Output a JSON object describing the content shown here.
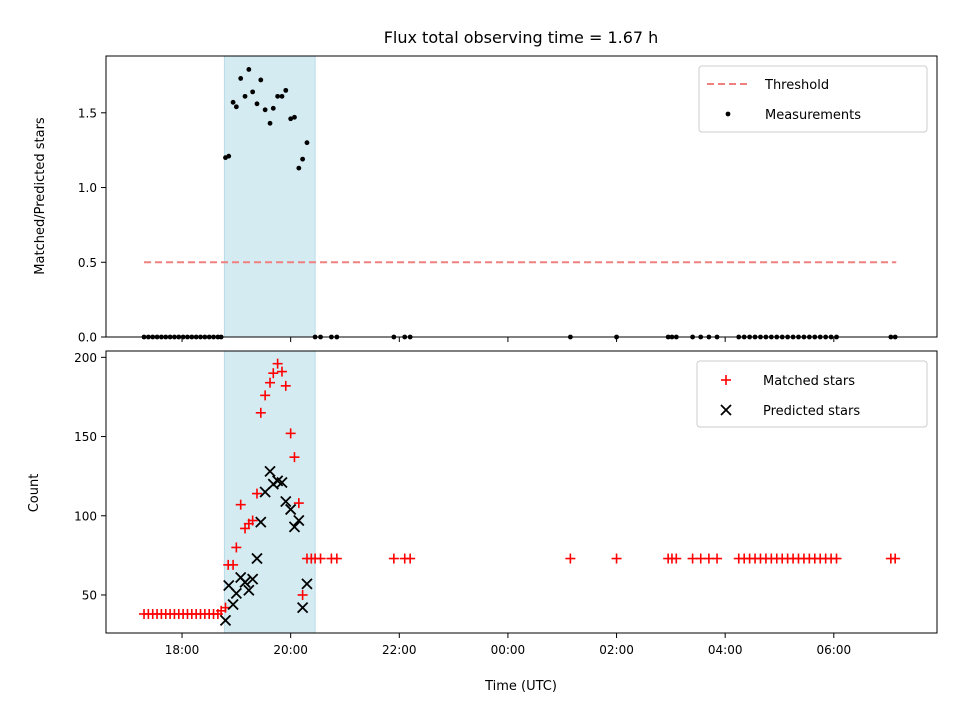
{
  "chart_data": [
    {
      "type": "scatter",
      "title": "Flux total observing time = 1.67 h",
      "xlabel": "",
      "ylabel": "Matched/Predicted stars",
      "ylim": [
        0,
        1.88
      ],
      "xlim_hours": [
        16.6,
        31.9
      ],
      "yticks": [
        "0.0",
        "0.5",
        "1.0",
        "1.5"
      ],
      "ytick_values": [
        0,
        0.5,
        1.0,
        1.5
      ],
      "legend_position": "top-right",
      "highlight_span_hours": [
        18.78,
        20.45
      ],
      "highlight_color": "#d4ebf2",
      "threshold": {
        "name": "Threshold",
        "value": 0.5,
        "x_from": 17.3,
        "x_to": 31.15,
        "color": "#f08080"
      },
      "measurements": {
        "name": "Measurements",
        "color": "#000000",
        "points": [
          [
            17.3,
            0
          ],
          [
            17.38,
            0
          ],
          [
            17.46,
            0
          ],
          [
            17.54,
            0
          ],
          [
            17.62,
            0
          ],
          [
            17.7,
            0
          ],
          [
            17.78,
            0
          ],
          [
            17.86,
            0
          ],
          [
            17.94,
            0
          ],
          [
            18.02,
            0
          ],
          [
            18.1,
            0
          ],
          [
            18.18,
            0
          ],
          [
            18.26,
            0
          ],
          [
            18.34,
            0
          ],
          [
            18.42,
            0
          ],
          [
            18.5,
            0
          ],
          [
            18.58,
            0
          ],
          [
            18.66,
            0
          ],
          [
            18.72,
            0
          ],
          [
            18.8,
            1.2
          ],
          [
            18.86,
            1.21
          ],
          [
            18.94,
            1.57
          ],
          [
            19.0,
            1.54
          ],
          [
            19.08,
            1.73
          ],
          [
            19.16,
            1.61
          ],
          [
            19.23,
            1.79
          ],
          [
            19.3,
            1.64
          ],
          [
            19.38,
            1.56
          ],
          [
            19.45,
            1.72
          ],
          [
            19.53,
            1.52
          ],
          [
            19.62,
            1.43
          ],
          [
            19.68,
            1.53
          ],
          [
            19.76,
            1.61
          ],
          [
            19.84,
            1.61
          ],
          [
            19.91,
            1.65
          ],
          [
            20.0,
            1.46
          ],
          [
            20.07,
            1.47
          ],
          [
            20.15,
            1.13
          ],
          [
            20.22,
            1.19
          ],
          [
            20.3,
            1.3
          ],
          [
            20.45,
            0
          ],
          [
            20.55,
            0
          ],
          [
            20.75,
            0
          ],
          [
            20.85,
            0
          ],
          [
            21.9,
            0
          ],
          [
            22.1,
            0
          ],
          [
            22.2,
            0
          ],
          [
            25.15,
            0
          ],
          [
            26.0,
            0
          ],
          [
            26.95,
            0
          ],
          [
            27.02,
            0
          ],
          [
            27.1,
            0
          ],
          [
            27.4,
            0
          ],
          [
            27.55,
            0
          ],
          [
            27.7,
            0
          ],
          [
            27.85,
            0
          ],
          [
            28.25,
            0
          ],
          [
            28.35,
            0
          ],
          [
            28.45,
            0
          ],
          [
            28.55,
            0
          ],
          [
            28.65,
            0
          ],
          [
            28.75,
            0
          ],
          [
            28.85,
            0
          ],
          [
            28.95,
            0
          ],
          [
            29.05,
            0
          ],
          [
            29.15,
            0
          ],
          [
            29.25,
            0
          ],
          [
            29.35,
            0
          ],
          [
            29.45,
            0
          ],
          [
            29.55,
            0
          ],
          [
            29.65,
            0
          ],
          [
            29.75,
            0
          ],
          [
            29.85,
            0
          ],
          [
            29.95,
            0
          ],
          [
            30.05,
            0
          ],
          [
            31.05,
            0
          ],
          [
            31.13,
            0
          ]
        ]
      }
    },
    {
      "type": "scatter",
      "xlabel": "Time (UTC)",
      "ylabel": "Count",
      "ylim": [
        26,
        204
      ],
      "xlim_hours": [
        16.6,
        31.9
      ],
      "yticks": [
        "50",
        "100",
        "150",
        "200"
      ],
      "ytick_values": [
        50,
        100,
        150,
        200
      ],
      "xticks": [
        "18:00",
        "20:00",
        "22:00",
        "00:00",
        "02:00",
        "04:00",
        "06:00"
      ],
      "xtick_hours": [
        18,
        20,
        22,
        24,
        26,
        28,
        30
      ],
      "legend_position": "top-right",
      "highlight_span_hours": [
        18.78,
        20.45
      ],
      "highlight_color": "#d4ebf2",
      "series": [
        {
          "name": "Matched stars",
          "marker": "plus",
          "color": "#ff0000",
          "points": [
            [
              17.3,
              38
            ],
            [
              17.38,
              38
            ],
            [
              17.46,
              38
            ],
            [
              17.54,
              38
            ],
            [
              17.62,
              38
            ],
            [
              17.7,
              38
            ],
            [
              17.78,
              38
            ],
            [
              17.86,
              38
            ],
            [
              17.94,
              38
            ],
            [
              18.02,
              38
            ],
            [
              18.1,
              38
            ],
            [
              18.18,
              38
            ],
            [
              18.26,
              38
            ],
            [
              18.34,
              38
            ],
            [
              18.42,
              38
            ],
            [
              18.5,
              38
            ],
            [
              18.58,
              38
            ],
            [
              18.66,
              38
            ],
            [
              18.72,
              40
            ],
            [
              18.8,
              42
            ],
            [
              18.85,
              69
            ],
            [
              18.94,
              69
            ],
            [
              19.0,
              80
            ],
            [
              19.08,
              107
            ],
            [
              19.16,
              92
            ],
            [
              19.23,
              95
            ],
            [
              19.3,
              97
            ],
            [
              19.38,
              114
            ],
            [
              19.45,
              165
            ],
            [
              19.53,
              176
            ],
            [
              19.62,
              184
            ],
            [
              19.68,
              190
            ],
            [
              19.76,
              196
            ],
            [
              19.84,
              191
            ],
            [
              19.91,
              182
            ],
            [
              20.0,
              152
            ],
            [
              20.07,
              137
            ],
            [
              20.15,
              108
            ],
            [
              20.22,
              50
            ],
            [
              20.3,
              73
            ],
            [
              20.38,
              73
            ],
            [
              20.45,
              73
            ],
            [
              20.55,
              73
            ],
            [
              20.75,
              73
            ],
            [
              20.85,
              73
            ],
            [
              21.9,
              73
            ],
            [
              22.1,
              73
            ],
            [
              22.2,
              73
            ],
            [
              25.15,
              73
            ],
            [
              26.0,
              73
            ],
            [
              26.95,
              73
            ],
            [
              27.02,
              73
            ],
            [
              27.1,
              73
            ],
            [
              27.4,
              73
            ],
            [
              27.55,
              73
            ],
            [
              27.7,
              73
            ],
            [
              27.85,
              73
            ],
            [
              28.25,
              73
            ],
            [
              28.35,
              73
            ],
            [
              28.45,
              73
            ],
            [
              28.55,
              73
            ],
            [
              28.65,
              73
            ],
            [
              28.75,
              73
            ],
            [
              28.85,
              73
            ],
            [
              28.95,
              73
            ],
            [
              29.05,
              73
            ],
            [
              29.15,
              73
            ],
            [
              29.25,
              73
            ],
            [
              29.35,
              73
            ],
            [
              29.45,
              73
            ],
            [
              29.55,
              73
            ],
            [
              29.65,
              73
            ],
            [
              29.75,
              73
            ],
            [
              29.85,
              73
            ],
            [
              29.95,
              73
            ],
            [
              30.05,
              73
            ],
            [
              31.05,
              73
            ],
            [
              31.13,
              73
            ]
          ]
        },
        {
          "name": "Predicted stars",
          "marker": "x",
          "color": "#000000",
          "points": [
            [
              18.8,
              34
            ],
            [
              18.86,
              56
            ],
            [
              18.94,
              44
            ],
            [
              19.0,
              51
            ],
            [
              19.08,
              61
            ],
            [
              19.16,
              58
            ],
            [
              19.23,
              53
            ],
            [
              19.3,
              60
            ],
            [
              19.38,
              73
            ],
            [
              19.45,
              96
            ],
            [
              19.53,
              115
            ],
            [
              19.62,
              128
            ],
            [
              19.68,
              120
            ],
            [
              19.76,
              122
            ],
            [
              19.84,
              121
            ],
            [
              19.91,
              109
            ],
            [
              20.0,
              104
            ],
            [
              20.07,
              93
            ],
            [
              20.15,
              97
            ],
            [
              20.22,
              42
            ],
            [
              20.3,
              57
            ]
          ]
        }
      ]
    }
  ]
}
